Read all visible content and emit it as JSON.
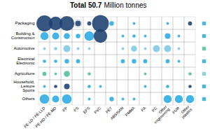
{
  "chart_data": {
    "type": "bubble",
    "title": "Total 50.7",
    "subtitle": "Million tonnes",
    "grid": true,
    "rows": [
      "Packaging",
      "Building &\nConstruction",
      "Automotive",
      "Electrical\nElectronic",
      "Agriculture",
      "Household,\nLeisure\nSports",
      "Others"
    ],
    "cols": [
      "PE-LD / PE-LLD",
      "PE-HD / PE-MD",
      "PP",
      "PS",
      "EPS",
      "PVC",
      "PET",
      "ABS/SAN",
      "PMMA",
      "PA",
      "PC",
      "Other\nengineering",
      "PUR",
      "Other\nplastics"
    ],
    "outline_bubbles": [
      {
        "row": "Packaging",
        "col": "PE-HD / PE-MD",
        "size": 150,
        "color": "#a0bcd8"
      },
      {
        "row": "Packaging",
        "col": "PP",
        "size": 110,
        "color": "#a0bcd8"
      },
      {
        "row": "Packaging",
        "col": "PS",
        "size": 60,
        "color": "#a0bcd8"
      },
      {
        "row": "Building &\nConstruction",
        "col": "EPS",
        "size": 75,
        "color": "#a0bcd8"
      }
    ],
    "bubbles": [
      {
        "row": "Packaging",
        "col": "PE-LD / PE-LLD",
        "size": 280,
        "color": "#1b3f6e"
      },
      {
        "row": "Packaging",
        "col": "PE-HD / PE-MD",
        "size": 200,
        "color": "#1b3f6e"
      },
      {
        "row": "Packaging",
        "col": "PP",
        "size": 240,
        "color": "#1b3f6e"
      },
      {
        "row": "Packaging",
        "col": "PS",
        "size": 35,
        "color": "#1b3f6e"
      },
      {
        "row": "Packaging",
        "col": "EPS",
        "size": 18,
        "color": "#1b3f6e"
      },
      {
        "row": "Packaging",
        "col": "PVC",
        "size": 310,
        "color": "#1b3f6e"
      },
      {
        "row": "Packaging",
        "col": "PET",
        "size": 22,
        "color": "#29aae1"
      },
      {
        "row": "Packaging",
        "col": "PMMA",
        "size": 8,
        "color": "#29aae1"
      },
      {
        "row": "Packaging",
        "col": "Other\nengineering",
        "size": 8,
        "color": "#29aae1"
      },
      {
        "row": "Packaging",
        "col": "Other\nplastics",
        "size": 18,
        "color": "#1b3f6e"
      },
      {
        "row": "Building &\nConstruction",
        "col": "PE-LD / PE-LLD",
        "size": 70,
        "color": "#29aae1"
      },
      {
        "row": "Building &\nConstruction",
        "col": "PE-HD / PE-MD",
        "size": 55,
        "color": "#29aae1"
      },
      {
        "row": "Building &\nConstruction",
        "col": "PP",
        "size": 40,
        "color": "#29aae1"
      },
      {
        "row": "Building &\nConstruction",
        "col": "PS",
        "size": 22,
        "color": "#29aae1"
      },
      {
        "row": "Building &\nConstruction",
        "col": "EPS",
        "size": 100,
        "color": "#29aae1"
      },
      {
        "row": "Building &\nConstruction",
        "col": "PVC",
        "size": 200,
        "color": "#1b3f6e"
      },
      {
        "row": "Building &\nConstruction",
        "col": "ABS/SAN",
        "size": 8,
        "color": "#29aae1"
      },
      {
        "row": "Building &\nConstruction",
        "col": "PMMA",
        "size": 12,
        "color": "#29aae1"
      },
      {
        "row": "Building &\nConstruction",
        "col": "PA",
        "size": 8,
        "color": "#29aae1"
      },
      {
        "row": "Building &\nConstruction",
        "col": "Other\nengineering",
        "size": 35,
        "color": "#29aae1"
      },
      {
        "row": "Building &\nConstruction",
        "col": "PUR",
        "size": 8,
        "color": "#29aae1"
      },
      {
        "row": "Automotive",
        "col": "PE-LD / PE-LLD",
        "size": 8,
        "color": "#7ec8e3"
      },
      {
        "row": "Automotive",
        "col": "PE-HD / PE-MD",
        "size": 12,
        "color": "#7ec8e3"
      },
      {
        "row": "Automotive",
        "col": "PP",
        "size": 55,
        "color": "#7ec8e3"
      },
      {
        "row": "Automotive",
        "col": "PS",
        "size": 8,
        "color": "#7ec8e3"
      },
      {
        "row": "Automotive",
        "col": "EPS",
        "size": 8,
        "color": "#7ec8e3"
      },
      {
        "row": "Automotive",
        "col": "ABS/SAN",
        "size": 8,
        "color": "#7ec8e3"
      },
      {
        "row": "Automotive",
        "col": "PMMA",
        "size": 40,
        "color": "#7ec8e3"
      },
      {
        "row": "Automotive",
        "col": "PA",
        "size": 8,
        "color": "#7ec8e3"
      },
      {
        "row": "Automotive",
        "col": "PC",
        "size": 55,
        "color": "#7ec8e3"
      },
      {
        "row": "Automotive",
        "col": "Other\nengineering",
        "size": 55,
        "color": "#7ec8e3"
      },
      {
        "row": "Automotive",
        "col": "PUR",
        "size": 8,
        "color": "#7ec8e3"
      },
      {
        "row": "Electrical\nElectronic",
        "col": "PE-LD / PE-LLD",
        "size": 12,
        "color": "#29aae1"
      },
      {
        "row": "Electrical\nElectronic",
        "col": "PE-HD / PE-MD",
        "size": 12,
        "color": "#29aae1"
      },
      {
        "row": "Electrical\nElectronic",
        "col": "PP",
        "size": 22,
        "color": "#29aae1"
      },
      {
        "row": "Electrical\nElectronic",
        "col": "PS",
        "size": 18,
        "color": "#29aae1"
      },
      {
        "row": "Electrical\nElectronic",
        "col": "ABS/SAN",
        "size": 18,
        "color": "#29aae1"
      },
      {
        "row": "Electrical\nElectronic",
        "col": "PMMA",
        "size": 22,
        "color": "#29aae1"
      },
      {
        "row": "Electrical\nElectronic",
        "col": "PA",
        "size": 18,
        "color": "#29aae1"
      },
      {
        "row": "Electrical\nElectronic",
        "col": "Other\nengineering",
        "size": 18,
        "color": "#29aae1"
      },
      {
        "row": "Electrical\nElectronic",
        "col": "PUR",
        "size": 8,
        "color": "#29aae1"
      },
      {
        "row": "Agriculture",
        "col": "PE-LD / PE-LLD",
        "size": 18,
        "color": "#4dbf9e"
      },
      {
        "row": "Agriculture",
        "col": "PE-HD / PE-MD",
        "size": 8,
        "color": "#4dbf9e"
      },
      {
        "row": "Agriculture",
        "col": "PP",
        "size": 40,
        "color": "#4dbf9e"
      },
      {
        "row": "Agriculture",
        "col": "EPS",
        "size": 12,
        "color": "#4dbf9e"
      },
      {
        "row": "Agriculture",
        "col": "PA",
        "size": 8,
        "color": "#4dbf9e"
      },
      {
        "row": "Agriculture",
        "col": "Other\nplastics",
        "size": 12,
        "color": "#4dbf9e"
      },
      {
        "row": "Household,\nLeisure\nSports",
        "col": "PE-LD / PE-LLD",
        "size": 8,
        "color": "#29aae1"
      },
      {
        "row": "Household,\nLeisure\nSports",
        "col": "PE-HD / PE-MD",
        "size": 12,
        "color": "#1b3f6e"
      },
      {
        "row": "Household,\nLeisure\nSports",
        "col": "PP",
        "size": 35,
        "color": "#1b3f6e"
      },
      {
        "row": "Household,\nLeisure\nSports",
        "col": "EPS",
        "size": 12,
        "color": "#29aae1"
      },
      {
        "row": "Household,\nLeisure\nSports",
        "col": "PVC",
        "size": 8,
        "color": "#29aae1"
      },
      {
        "row": "Household,\nLeisure\nSports",
        "col": "PA",
        "size": 8,
        "color": "#29aae1"
      },
      {
        "row": "Household,\nLeisure\nSports",
        "col": "Other\nengineering",
        "size": 12,
        "color": "#29aae1"
      },
      {
        "row": "Household,\nLeisure\nSports",
        "col": "Other\nplastics",
        "size": 12,
        "color": "#1b3f6e"
      },
      {
        "row": "Others",
        "col": "PE-LD / PE-LLD",
        "size": 100,
        "color": "#29aae1"
      },
      {
        "row": "Others",
        "col": "PE-HD / PE-MD",
        "size": 55,
        "color": "#29aae1"
      },
      {
        "row": "Others",
        "col": "PP",
        "size": 100,
        "color": "#29aae1"
      },
      {
        "row": "Others",
        "col": "EPS",
        "size": 8,
        "color": "#29aae1"
      },
      {
        "row": "Others",
        "col": "PET",
        "size": 22,
        "color": "#29aae1"
      },
      {
        "row": "Others",
        "col": "ABS/SAN",
        "size": 8,
        "color": "#29aae1"
      },
      {
        "row": "Others",
        "col": "PMMA",
        "size": 8,
        "color": "#29aae1"
      },
      {
        "row": "Others",
        "col": "Other\nengineering",
        "size": 70,
        "color": "#29aae1"
      },
      {
        "row": "Others",
        "col": "PUR",
        "size": 70,
        "color": "#29aae1"
      },
      {
        "row": "Others",
        "col": "Other\nplastics",
        "size": 70,
        "color": "#29aae1"
      }
    ],
    "icons": [
      {
        "row": "Packaging",
        "color": "#29aae1"
      },
      {
        "row": "Building &\nConstruction",
        "color": "#29aae1"
      },
      {
        "row": "Automotive",
        "color": "#4dbf9e"
      },
      {
        "row": "Electrical\nElectronic",
        "color": "#29aae1"
      },
      {
        "row": "Agriculture",
        "color": "#7ec8e3"
      },
      {
        "row": "Household,\nLeisure\nSports",
        "color": "#29aae1"
      },
      {
        "row": "Others",
        "color": "#29aae1"
      }
    ]
  }
}
